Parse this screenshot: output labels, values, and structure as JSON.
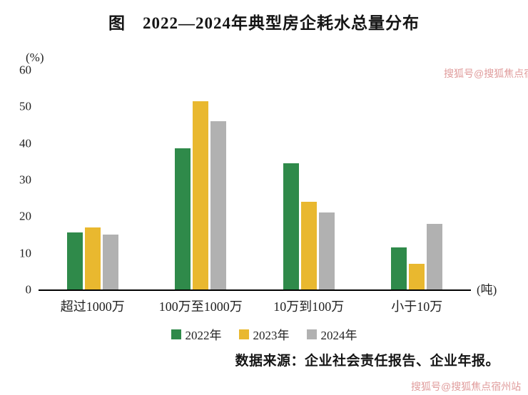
{
  "title": "图　2022—2024年典型房企耗水总量分布",
  "y_unit": "(%)",
  "x_unit": "(吨)",
  "source": "数据来源：企业社会责任报告、企业年报。",
  "watermark_top": "搜狐号@搜狐焦点宿州站",
  "watermark_bottom": "搜狐号@搜狐焦点宿州站",
  "chart_data": {
    "type": "bar",
    "title": "图　2022—2024年典型房企耗水总量分布",
    "categories": [
      "超过1000万",
      "100万至1000万",
      "10万到100万",
      "小于10万"
    ],
    "series": [
      {
        "name": "2022年",
        "color": "#2f8a4a",
        "values": [
          15.5,
          38.5,
          34.5,
          11.5
        ]
      },
      {
        "name": "2023年",
        "color": "#e9b82f",
        "values": [
          17,
          51.5,
          24,
          7
        ]
      },
      {
        "name": "2024年",
        "color": "#b1b1b1",
        "values": [
          15,
          46,
          21,
          18
        ]
      }
    ],
    "xlabel": "(吨)",
    "ylabel": "(%)",
    "ylim": [
      0,
      60
    ],
    "yticks": [
      0,
      10,
      20,
      30,
      40,
      50,
      60
    ],
    "grid": false,
    "legend_position": "bottom"
  }
}
